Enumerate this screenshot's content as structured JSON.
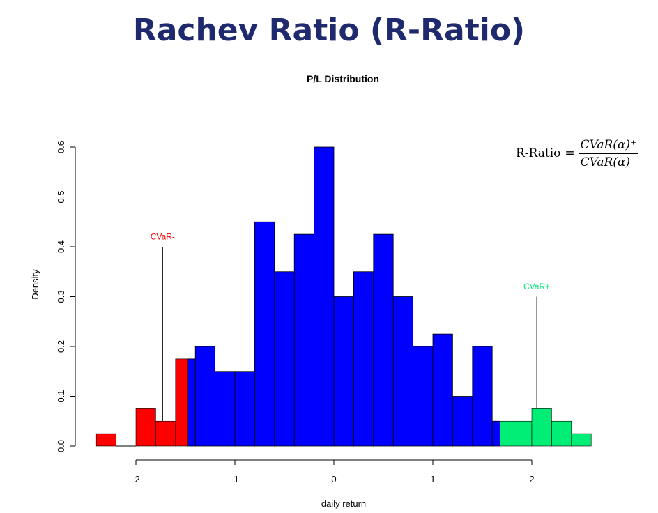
{
  "slide_title": "Rachev Ratio (R-Ratio)",
  "formula": {
    "lhs": "R-Ratio",
    "eq": "=",
    "numerator": "CVaR(α)⁺",
    "denominator": "CVaR(α)⁻"
  },
  "colors": {
    "title": "#1f2a6e",
    "left_tail": "#ff0000",
    "body": "#0000ff",
    "right_tail": "#00ee76"
  },
  "chart_data": {
    "type": "bar",
    "title": "P/L Distribution",
    "xlabel": "daily return",
    "ylabel": "Density",
    "xlim": [
      -2.5,
      2.6
    ],
    "ylim": [
      0,
      0.6
    ],
    "x_ticks": [
      -2,
      -1,
      0,
      1,
      2
    ],
    "y_ticks": [
      0.0,
      0.1,
      0.2,
      0.3,
      0.4,
      0.5,
      0.6
    ],
    "y_tick_labels": [
      "0.0",
      "0.1",
      "0.2",
      "0.3",
      "0.4",
      "0.5",
      "0.6"
    ],
    "grid": false,
    "series": [
      {
        "region": "left_tail",
        "bins": [
          {
            "x0": -2.4,
            "x1": -2.2,
            "density": 0.025
          },
          {
            "x0": -2.2,
            "x1": -2.0,
            "density": 0.0
          },
          {
            "x0": -2.0,
            "x1": -1.8,
            "density": 0.075
          },
          {
            "x0": -1.8,
            "x1": -1.6,
            "density": 0.05
          },
          {
            "x0": -1.6,
            "x1": -1.48,
            "density": 0.175
          }
        ]
      },
      {
        "region": "body",
        "bins": [
          {
            "x0": -1.48,
            "x1": -1.4,
            "density": 0.175
          },
          {
            "x0": -1.4,
            "x1": -1.2,
            "density": 0.2
          },
          {
            "x0": -1.2,
            "x1": -1.0,
            "density": 0.15
          },
          {
            "x0": -1.0,
            "x1": -0.8,
            "density": 0.15
          },
          {
            "x0": -0.8,
            "x1": -0.6,
            "density": 0.45
          },
          {
            "x0": -0.6,
            "x1": -0.4,
            "density": 0.35
          },
          {
            "x0": -0.4,
            "x1": -0.2,
            "density": 0.425
          },
          {
            "x0": -0.2,
            "x1": 0.0,
            "density": 0.6
          },
          {
            "x0": 0.0,
            "x1": 0.2,
            "density": 0.3
          },
          {
            "x0": 0.2,
            "x1": 0.4,
            "density": 0.35
          },
          {
            "x0": 0.4,
            "x1": 0.6,
            "density": 0.425
          },
          {
            "x0": 0.6,
            "x1": 0.8,
            "density": 0.3
          },
          {
            "x0": 0.8,
            "x1": 1.0,
            "density": 0.2
          },
          {
            "x0": 1.0,
            "x1": 1.2,
            "density": 0.225
          },
          {
            "x0": 1.2,
            "x1": 1.4,
            "density": 0.1
          },
          {
            "x0": 1.4,
            "x1": 1.6,
            "density": 0.2
          },
          {
            "x0": 1.6,
            "x1": 1.68,
            "density": 0.05
          }
        ]
      },
      {
        "region": "right_tail",
        "bins": [
          {
            "x0": 1.68,
            "x1": 1.8,
            "density": 0.05
          },
          {
            "x0": 1.8,
            "x1": 2.0,
            "density": 0.05
          },
          {
            "x0": 2.0,
            "x1": 2.2,
            "density": 0.075
          },
          {
            "x0": 2.2,
            "x1": 2.4,
            "density": 0.05
          },
          {
            "x0": 2.4,
            "x1": 2.6,
            "density": 0.025
          }
        ]
      }
    ],
    "annotations": [
      {
        "label": "CVaR-",
        "x": -1.73,
        "y_label": 0.415,
        "y_line_top": 0.4,
        "y_line_bottom": 0.05,
        "color": "#ff0000"
      },
      {
        "label": "CVaR+",
        "x": 2.05,
        "y_label": 0.315,
        "y_line_top": 0.3,
        "y_line_bottom": 0.075,
        "color": "#00ee76"
      }
    ]
  }
}
